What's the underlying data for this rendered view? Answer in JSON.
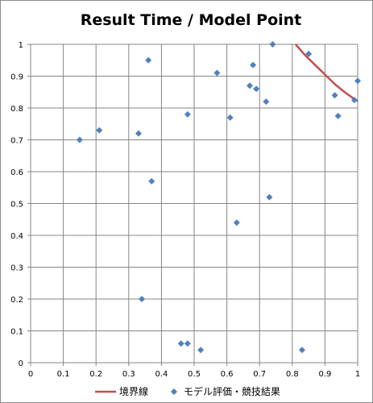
{
  "chart_data": {
    "type": "scatter",
    "title": "Result Time / Model Point",
    "xlim": [
      0,
      1
    ],
    "ylim": [
      0,
      1
    ],
    "x_ticks": [
      "0",
      "0.1",
      "0.2",
      "0.3",
      "0.4",
      "0.5",
      "0.6",
      "0.7",
      "0.8",
      "0.9",
      "1"
    ],
    "y_ticks": [
      "0",
      "0.1",
      "0.2",
      "0.3",
      "0.4",
      "0.5",
      "0.6",
      "0.7",
      "0.8",
      "0.9",
      "1"
    ],
    "grid": true,
    "legend_position": "bottom",
    "series": [
      {
        "name": "境界線",
        "kind": "line",
        "color": "#c0504d",
        "x": [
          0.81,
          0.84,
          0.87,
          0.9,
          0.93,
          0.96,
          0.99,
          1.0
        ],
        "y": [
          1.0,
          0.965,
          0.935,
          0.905,
          0.875,
          0.85,
          0.828,
          0.822
        ]
      },
      {
        "name": "モデル評価・競技結果",
        "kind": "scatter",
        "color": "#4f81bd",
        "x": [
          0.15,
          0.21,
          0.33,
          0.34,
          0.36,
          0.37,
          0.46,
          0.48,
          0.48,
          0.52,
          0.57,
          0.61,
          0.63,
          0.67,
          0.68,
          0.69,
          0.72,
          0.73,
          0.74,
          0.83,
          0.85,
          0.93,
          0.94,
          0.99,
          1.0
        ],
        "y": [
          0.7,
          0.73,
          0.72,
          0.2,
          0.95,
          0.57,
          0.06,
          0.78,
          0.06,
          0.04,
          0.91,
          0.77,
          0.44,
          0.87,
          0.935,
          0.86,
          0.82,
          0.52,
          1.0,
          0.04,
          0.97,
          0.84,
          0.775,
          0.825,
          0.885
        ]
      }
    ]
  }
}
